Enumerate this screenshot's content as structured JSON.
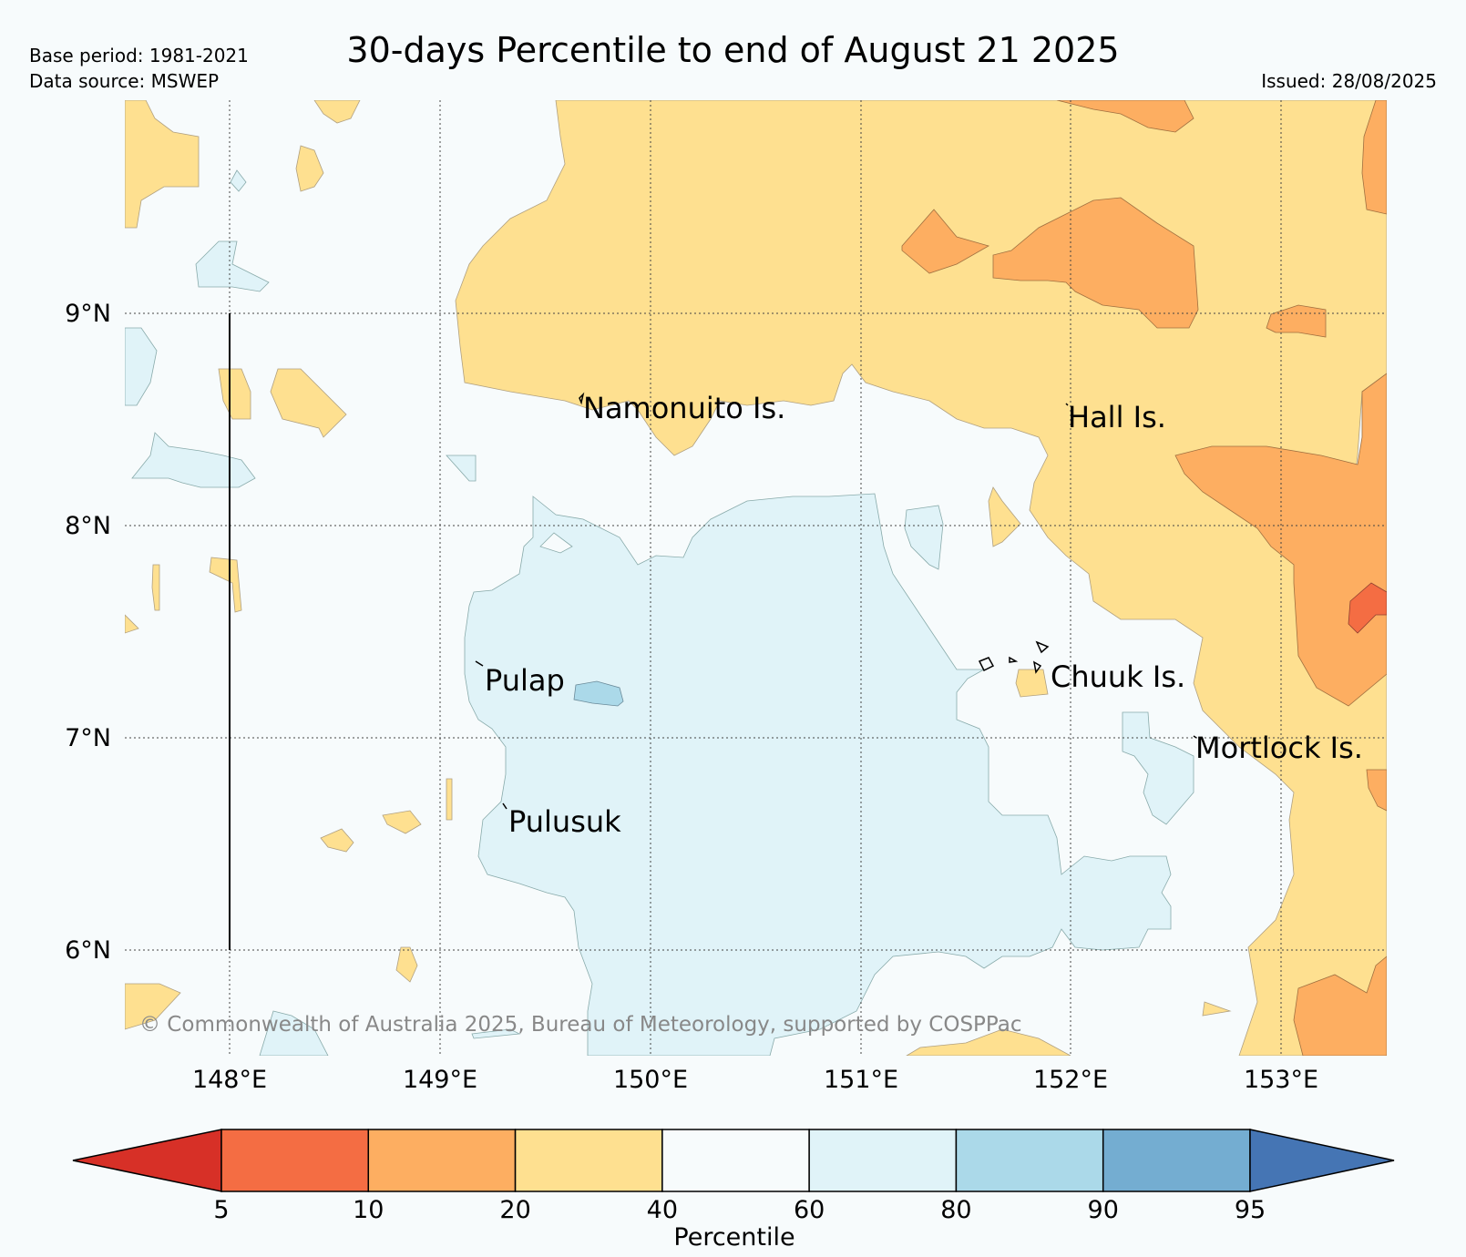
{
  "title": "30-days Percentile to end of August 21 2025",
  "base_period": "Base period: 1981-2021",
  "data_source": "Data source: MSWEP",
  "issued": "Issued: 28/08/2025",
  "copyright": "© Commonwealth of Australia 2025, Bureau of Meteorology, supported by COSPPac",
  "lat_labels": [
    "9°N",
    "8°N",
    "7°N",
    "6°N"
  ],
  "lon_labels": [
    "148°E",
    "149°E",
    "150°E",
    "151°E",
    "152°E",
    "153°E"
  ],
  "places": [
    "Namonuito Is.",
    "Hall Is.",
    "Pulap",
    "Chuuk Is.",
    "Mortlock Is.",
    "Pulusuk"
  ],
  "colorbar": {
    "title": "Percentile",
    "ticks": [
      "5",
      "10",
      "20",
      "40",
      "60",
      "80",
      "90",
      "95"
    ],
    "colors": [
      "#d73027",
      "#f46d43",
      "#fdae61",
      "#fee090",
      "#f7fbfc",
      "#e0f3f8",
      "#abd9e9",
      "#74add1",
      "#4575b4"
    ]
  }
}
